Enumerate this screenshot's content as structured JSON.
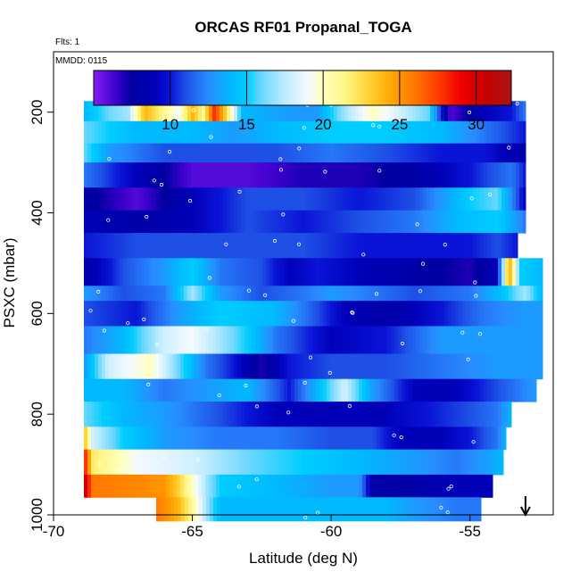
{
  "chart_data": {
    "type": "heatmap",
    "title": "ORCAS RF01 Propanal_TOGA",
    "flights_label": "Flts: 1",
    "date_label": "MMDD: 0115",
    "xlabel": "Latitude (deg N)",
    "ylabel": "PSXC (mbar)",
    "xlim": [
      -70,
      -52
    ],
    "ylim": [
      1000,
      80
    ],
    "x_ticks": [
      -70,
      -65,
      -60,
      -55
    ],
    "y_ticks": [
      200,
      400,
      600,
      800,
      1000
    ],
    "colorbar": {
      "range": [
        5,
        32.3
      ],
      "ticks": [
        10,
        15,
        20,
        25,
        30
      ]
    },
    "arrow_latitude": -53.0,
    "bands": [
      {
        "p_top": 178,
        "p_bot": 218,
        "lat_start": -68.9,
        "lat_end": -53.0,
        "stops": [
          [
            -68.9,
            14
          ],
          [
            -68,
            16
          ],
          [
            -67.3,
            17
          ],
          [
            -66.7,
            24
          ],
          [
            -66,
            21
          ],
          [
            -65.5,
            19
          ],
          [
            -65,
            24
          ],
          [
            -64.6,
            21
          ],
          [
            -64.2,
            28
          ],
          [
            -63.8,
            23
          ],
          [
            -63.2,
            14
          ],
          [
            -61.5,
            13
          ],
          [
            -60.5,
            13
          ],
          [
            -59.5,
            17
          ],
          [
            -58.5,
            20
          ],
          [
            -57.5,
            18
          ],
          [
            -56.5,
            16
          ],
          [
            -55.7,
            6
          ],
          [
            -54.5,
            9
          ],
          [
            -53.5,
            10
          ],
          [
            -53,
            12
          ]
        ]
      },
      {
        "p_top": 218,
        "p_bot": 262,
        "lat_start": -68.9,
        "lat_end": -53.0,
        "stops": [
          [
            -68.9,
            16
          ],
          [
            -67,
            14
          ],
          [
            -65,
            14
          ],
          [
            -63.5,
            13
          ],
          [
            -62,
            14
          ],
          [
            -60,
            15
          ],
          [
            -58,
            15
          ],
          [
            -56,
            14
          ],
          [
            -54.5,
            12
          ],
          [
            -53,
            10
          ]
        ]
      },
      {
        "p_top": 262,
        "p_bot": 300,
        "lat_start": -68.9,
        "lat_end": -53.0,
        "stops": [
          [
            -68.9,
            16
          ],
          [
            -68,
            13
          ],
          [
            -66,
            11
          ],
          [
            -64,
            11
          ],
          [
            -62,
            11
          ],
          [
            -60,
            12
          ],
          [
            -58,
            11
          ],
          [
            -56,
            10
          ],
          [
            -54.5,
            10
          ],
          [
            -53,
            8
          ]
        ]
      },
      {
        "p_top": 300,
        "p_bot": 350,
        "lat_start": -68.9,
        "lat_end": -53.0,
        "stops": [
          [
            -68.9,
            12
          ],
          [
            -67,
            9
          ],
          [
            -65,
            6
          ],
          [
            -63,
            6
          ],
          [
            -61,
            7
          ],
          [
            -59,
            7
          ],
          [
            -57,
            8
          ],
          [
            -55,
            10
          ],
          [
            -53.5,
            12
          ],
          [
            -53,
            10
          ]
        ]
      },
      {
        "p_top": 350,
        "p_bot": 395,
        "lat_start": -68.9,
        "lat_end": -53.0,
        "stops": [
          [
            -68.9,
            8
          ],
          [
            -67,
            6
          ],
          [
            -65,
            9
          ],
          [
            -63,
            11
          ],
          [
            -61,
            11
          ],
          [
            -59,
            10
          ],
          [
            -57,
            11
          ],
          [
            -55,
            15
          ],
          [
            -54,
            16
          ],
          [
            -53,
            9
          ]
        ]
      },
      {
        "p_top": 395,
        "p_bot": 440,
        "lat_start": -68.9,
        "lat_end": -53.0,
        "stops": [
          [
            -68.9,
            9
          ],
          [
            -67,
            8
          ],
          [
            -65,
            9
          ],
          [
            -63,
            11
          ],
          [
            -61,
            10
          ],
          [
            -59,
            11
          ],
          [
            -57,
            12
          ],
          [
            -55.5,
            14
          ],
          [
            -54,
            15
          ],
          [
            -53,
            12
          ]
        ]
      },
      {
        "p_top": 440,
        "p_bot": 490,
        "lat_start": -68.9,
        "lat_end": -53.3,
        "stops": [
          [
            -68.9,
            10
          ],
          [
            -67,
            11
          ],
          [
            -65,
            11
          ],
          [
            -63,
            11
          ],
          [
            -61,
            11
          ],
          [
            -59,
            10
          ],
          [
            -57,
            10
          ],
          [
            -55,
            10
          ],
          [
            -54,
            11
          ],
          [
            -53.3,
            10
          ]
        ]
      },
      {
        "p_top": 490,
        "p_bot": 545,
        "lat_start": -68.9,
        "lat_end": -52.4,
        "stops": [
          [
            -68.9,
            8
          ],
          [
            -67.5,
            11
          ],
          [
            -66,
            13
          ],
          [
            -65,
            15
          ],
          [
            -64,
            12
          ],
          [
            -62.5,
            11
          ],
          [
            -61.5,
            9
          ],
          [
            -60.5,
            10
          ],
          [
            -59,
            9
          ],
          [
            -57,
            8
          ],
          [
            -55,
            7
          ],
          [
            -54,
            9
          ],
          [
            -53.6,
            25
          ],
          [
            -53.2,
            15
          ],
          [
            -52.4,
            14
          ]
        ]
      },
      {
        "p_top": 545,
        "p_bot": 575,
        "lat_start": -68.9,
        "lat_end": -52.4,
        "stops": [
          [
            -68.9,
            13
          ],
          [
            -67.5,
            11
          ],
          [
            -66,
            12
          ],
          [
            -65,
            17
          ],
          [
            -64,
            13
          ],
          [
            -62.5,
            11
          ],
          [
            -61,
            12
          ],
          [
            -60,
            13
          ],
          [
            -58.5,
            12
          ],
          [
            -57,
            11
          ],
          [
            -55,
            12
          ],
          [
            -54,
            14
          ],
          [
            -53,
            17
          ],
          [
            -52.4,
            14
          ]
        ]
      },
      {
        "p_top": 575,
        "p_bot": 625,
        "lat_start": -68.9,
        "lat_end": -52.4,
        "stops": [
          [
            -68.9,
            11
          ],
          [
            -67,
            10
          ],
          [
            -65.5,
            13
          ],
          [
            -64,
            15
          ],
          [
            -62,
            14
          ],
          [
            -60.5,
            11
          ],
          [
            -59.5,
            9
          ],
          [
            -58,
            8
          ],
          [
            -56,
            10
          ],
          [
            -54.5,
            12
          ],
          [
            -53,
            13
          ],
          [
            -52.4,
            13
          ]
        ]
      },
      {
        "p_top": 625,
        "p_bot": 680,
        "lat_start": -68.9,
        "lat_end": -52.4,
        "stops": [
          [
            -68.9,
            12
          ],
          [
            -67.5,
            14
          ],
          [
            -66,
            18
          ],
          [
            -65,
            19
          ],
          [
            -64,
            17
          ],
          [
            -63,
            15
          ],
          [
            -62,
            12
          ],
          [
            -60,
            9
          ],
          [
            -58,
            10
          ],
          [
            -56,
            13
          ],
          [
            -54,
            13
          ],
          [
            -52.4,
            13
          ]
        ]
      },
      {
        "p_top": 680,
        "p_bot": 730,
        "lat_start": -68.9,
        "lat_end": -52.4,
        "stops": [
          [
            -68.9,
            13
          ],
          [
            -68,
            18
          ],
          [
            -66.5,
            20
          ],
          [
            -65.5,
            16
          ],
          [
            -64.5,
            12
          ],
          [
            -63.5,
            10
          ],
          [
            -62.5,
            7
          ],
          [
            -61.5,
            10
          ],
          [
            -60,
            11
          ],
          [
            -58,
            11
          ],
          [
            -56,
            12
          ],
          [
            -54,
            13
          ],
          [
            -52.4,
            13
          ]
        ]
      },
      {
        "p_top": 730,
        "p_bot": 775,
        "lat_start": -68.9,
        "lat_end": -52.6,
        "stops": [
          [
            -68.9,
            14
          ],
          [
            -67.5,
            14
          ],
          [
            -66,
            12
          ],
          [
            -64.5,
            13
          ],
          [
            -63,
            14
          ],
          [
            -61.5,
            10
          ],
          [
            -60.5,
            14
          ],
          [
            -59.5,
            18
          ],
          [
            -58.5,
            13
          ],
          [
            -57,
            9
          ],
          [
            -55.5,
            9
          ],
          [
            -54,
            11
          ],
          [
            -52.6,
            13
          ]
        ]
      },
      {
        "p_top": 775,
        "p_bot": 825,
        "lat_start": -68.9,
        "lat_end": -53.5,
        "stops": [
          [
            -68.9,
            16
          ],
          [
            -67.5,
            14
          ],
          [
            -66,
            13
          ],
          [
            -64,
            11
          ],
          [
            -62,
            9
          ],
          [
            -60,
            9
          ],
          [
            -58,
            9
          ],
          [
            -56.5,
            10
          ],
          [
            -55,
            11
          ],
          [
            -54,
            12
          ],
          [
            -53.5,
            14
          ]
        ]
      },
      {
        "p_top": 825,
        "p_bot": 870,
        "lat_start": -68.9,
        "lat_end": -53.7,
        "stops": [
          [
            -68.9,
            24
          ],
          [
            -68.6,
            18
          ],
          [
            -67.5,
            15
          ],
          [
            -66,
            13
          ],
          [
            -64,
            12
          ],
          [
            -62,
            12
          ],
          [
            -60,
            11
          ],
          [
            -58.5,
            11
          ],
          [
            -57.5,
            9
          ],
          [
            -56,
            9
          ],
          [
            -55,
            10
          ],
          [
            -54,
            12
          ],
          [
            -53.7,
            14
          ]
        ]
      },
      {
        "p_top": 870,
        "p_bot": 920,
        "lat_start": -68.9,
        "lat_end": -53.8,
        "stops": [
          [
            -68.9,
            29
          ],
          [
            -68.6,
            22
          ],
          [
            -67,
            19
          ],
          [
            -65,
            18
          ],
          [
            -63,
            16
          ],
          [
            -61,
            15
          ],
          [
            -59,
            14
          ],
          [
            -57,
            13
          ],
          [
            -55.5,
            12
          ],
          [
            -54.5,
            13
          ],
          [
            -53.8,
            14
          ]
        ]
      },
      {
        "p_top": 920,
        "p_bot": 965,
        "lat_start": -68.9,
        "lat_end": -54.2,
        "stops": [
          [
            -68.9,
            31
          ],
          [
            -68.6,
            26
          ],
          [
            -67,
            25.5
          ],
          [
            -66,
            25
          ],
          [
            -65.5,
            23
          ],
          [
            -65,
            20
          ],
          [
            -64.5,
            17
          ],
          [
            -64,
            15
          ],
          [
            -62,
            14
          ],
          [
            -60,
            13
          ],
          [
            -59,
            13
          ],
          [
            -58.5,
            8
          ],
          [
            -57,
            8
          ],
          [
            -55.5,
            9
          ],
          [
            -54.2,
            9
          ]
        ]
      },
      {
        "p_top": 965,
        "p_bot": 1012,
        "lat_start": -66.3,
        "lat_end": -54.6,
        "stops": [
          [
            -66.3,
            26
          ],
          [
            -65.5,
            24
          ],
          [
            -65,
            21
          ],
          [
            -64.5,
            17
          ],
          [
            -64,
            14
          ],
          [
            -62,
            14
          ],
          [
            -60,
            14
          ],
          [
            -58,
            14
          ],
          [
            -57,
            13
          ],
          [
            -55.5,
            12
          ],
          [
            -54.6,
            12
          ]
        ]
      }
    ]
  }
}
